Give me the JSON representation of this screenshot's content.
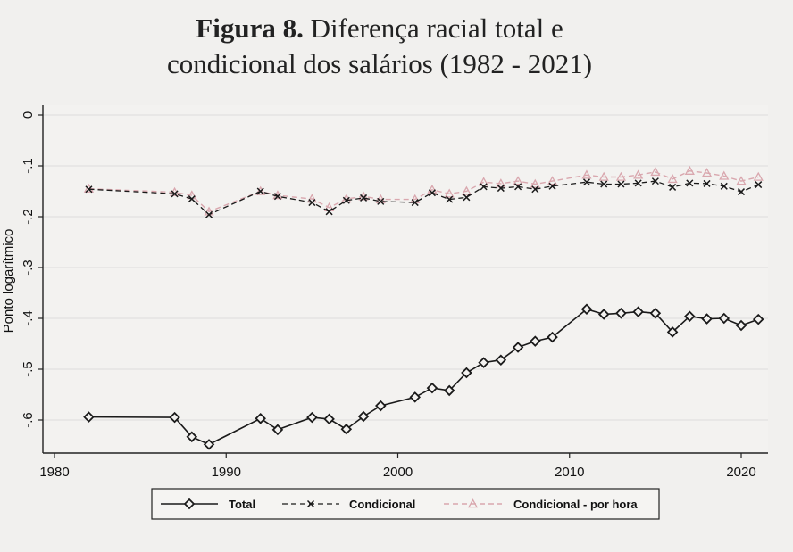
{
  "title": {
    "bold": "Figura 8.",
    "line1_rest": "Diferença racial total e",
    "line2": "condicional dos salários (1982 - 2021)"
  },
  "chart_data": {
    "type": "line",
    "title": "Figura 8. Diferença racial total e condicional dos salários (1982 - 2021)",
    "xlabel": "",
    "ylabel": "Ponto logarítmico",
    "xlim": [
      1980,
      2022
    ],
    "ylim": [
      -0.65,
      0.02
    ],
    "x_ticks": [
      1980,
      1990,
      2000,
      2010,
      2020
    ],
    "x_tick_labels": [
      "1980",
      "1990",
      "2000",
      "2010",
      "2020"
    ],
    "y_ticks": [
      0,
      -0.1,
      -0.2,
      -0.3,
      -0.4,
      -0.5,
      -0.6
    ],
    "y_tick_labels": [
      "0",
      "-.1",
      "-.2",
      "-.3",
      "-.4",
      "-.5",
      "-.6"
    ],
    "grid": true,
    "legend_position": "bottom",
    "colors": {
      "total": "#1a1a1a",
      "condicional": "#1a1a1a",
      "por_hora": "#d9a7ae"
    },
    "series": [
      {
        "name": "Total",
        "style": "solid-diamond",
        "points": [
          [
            1982,
            -0.594
          ],
          [
            1987,
            -0.595
          ],
          [
            1988,
            -0.633
          ],
          [
            1989,
            -0.648
          ],
          [
            1992,
            -0.597
          ],
          [
            1993,
            -0.619
          ],
          [
            1995,
            -0.595
          ],
          [
            1996,
            -0.598
          ],
          [
            1997,
            -0.618
          ],
          [
            1998,
            -0.593
          ],
          [
            1999,
            -0.572
          ],
          [
            2001,
            -0.555
          ],
          [
            2002,
            -0.537
          ],
          [
            2003,
            -0.542
          ],
          [
            2004,
            -0.507
          ],
          [
            2005,
            -0.487
          ],
          [
            2006,
            -0.482
          ],
          [
            2007,
            -0.457
          ],
          [
            2008,
            -0.445
          ],
          [
            2009,
            -0.437
          ],
          [
            2011,
            -0.382
          ],
          [
            2012,
            -0.392
          ],
          [
            2013,
            -0.39
          ],
          [
            2014,
            -0.387
          ],
          [
            2015,
            -0.39
          ],
          [
            2016,
            -0.427
          ],
          [
            2017,
            -0.396
          ],
          [
            2018,
            -0.401
          ],
          [
            2019,
            -0.4
          ],
          [
            2020,
            -0.414
          ],
          [
            2021,
            -0.402
          ]
        ]
      },
      {
        "name": "Condicional",
        "style": "dashed-x",
        "points": [
          [
            1982,
            -0.146
          ],
          [
            1987,
            -0.155
          ],
          [
            1988,
            -0.165
          ],
          [
            1989,
            -0.196
          ],
          [
            1992,
            -0.15
          ],
          [
            1993,
            -0.16
          ],
          [
            1995,
            -0.172
          ],
          [
            1996,
            -0.19
          ],
          [
            1997,
            -0.168
          ],
          [
            1998,
            -0.163
          ],
          [
            1999,
            -0.17
          ],
          [
            2001,
            -0.172
          ],
          [
            2002,
            -0.153
          ],
          [
            2003,
            -0.166
          ],
          [
            2004,
            -0.162
          ],
          [
            2005,
            -0.141
          ],
          [
            2006,
            -0.144
          ],
          [
            2007,
            -0.141
          ],
          [
            2008,
            -0.146
          ],
          [
            2009,
            -0.14
          ],
          [
            2011,
            -0.132
          ],
          [
            2012,
            -0.136
          ],
          [
            2013,
            -0.136
          ],
          [
            2014,
            -0.134
          ],
          [
            2015,
            -0.13
          ],
          [
            2016,
            -0.142
          ],
          [
            2017,
            -0.134
          ],
          [
            2018,
            -0.135
          ],
          [
            2019,
            -0.14
          ],
          [
            2020,
            -0.151
          ],
          [
            2021,
            -0.137
          ]
        ]
      },
      {
        "name": "Condicional - por hora",
        "style": "dashed-triangle",
        "points": [
          [
            1982,
            -0.145
          ],
          [
            1987,
            -0.152
          ],
          [
            1988,
            -0.158
          ],
          [
            1989,
            -0.19
          ],
          [
            1992,
            -0.15
          ],
          [
            1993,
            -0.158
          ],
          [
            1995,
            -0.165
          ],
          [
            1996,
            -0.182
          ],
          [
            1997,
            -0.165
          ],
          [
            1998,
            -0.16
          ],
          [
            1999,
            -0.166
          ],
          [
            2001,
            -0.166
          ],
          [
            2002,
            -0.147
          ],
          [
            2003,
            -0.155
          ],
          [
            2004,
            -0.15
          ],
          [
            2005,
            -0.132
          ],
          [
            2006,
            -0.135
          ],
          [
            2007,
            -0.13
          ],
          [
            2008,
            -0.136
          ],
          [
            2009,
            -0.13
          ],
          [
            2011,
            -0.118
          ],
          [
            2012,
            -0.122
          ],
          [
            2013,
            -0.122
          ],
          [
            2014,
            -0.118
          ],
          [
            2015,
            -0.112
          ],
          [
            2016,
            -0.126
          ],
          [
            2017,
            -0.11
          ],
          [
            2018,
            -0.114
          ],
          [
            2019,
            -0.12
          ],
          [
            2020,
            -0.13
          ],
          [
            2021,
            -0.122
          ]
        ]
      }
    ]
  }
}
